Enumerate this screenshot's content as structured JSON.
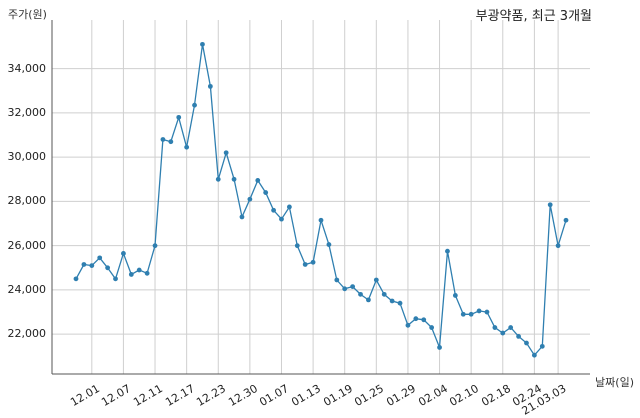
{
  "chart_data": {
    "type": "line",
    "title": "부광약품, 최근 3개월",
    "ylabel": "주가(원)",
    "xlabel": "날짜(일)",
    "ylim": [
      20200,
      36200
    ],
    "yticks": [
      22000,
      24000,
      26000,
      28000,
      30000,
      32000,
      34000
    ],
    "ytick_labels": [
      "22,000",
      "24,000",
      "26,000",
      "28,000",
      "30,000",
      "32,000",
      "34,000"
    ],
    "xtick_labels": [
      "12.01",
      "12.07",
      "12.11",
      "12.17",
      "12.23",
      "12.30",
      "01.07",
      "01.13",
      "01.19",
      "01.25",
      "01.29",
      "02.04",
      "02.10",
      "02.18",
      "02.24",
      "21.03.03"
    ],
    "xtick_index": [
      2,
      6,
      10,
      14,
      18,
      22,
      26,
      30,
      34,
      38,
      42,
      46,
      50,
      54,
      58,
      61
    ],
    "grid": true,
    "color": "#2f7fb0",
    "values": [
      24500,
      25150,
      25100,
      25450,
      25000,
      24500,
      25650,
      24700,
      24900,
      24750,
      26000,
      30800,
      30700,
      31800,
      30450,
      32350,
      35100,
      33200,
      29000,
      30200,
      29000,
      27300,
      28100,
      28950,
      28400,
      27600,
      27200,
      27750,
      26000,
      25150,
      25250,
      27150,
      26050,
      24450,
      24050,
      24150,
      23800,
      23550,
      24450,
      23800,
      23500,
      23400,
      22400,
      22700,
      22650,
      22300,
      21400,
      25750,
      23750,
      22900,
      22900,
      23050,
      23000,
      22300,
      22050,
      22300,
      21900,
      21600,
      21050,
      21450,
      27850,
      26000,
      27150
    ]
  }
}
